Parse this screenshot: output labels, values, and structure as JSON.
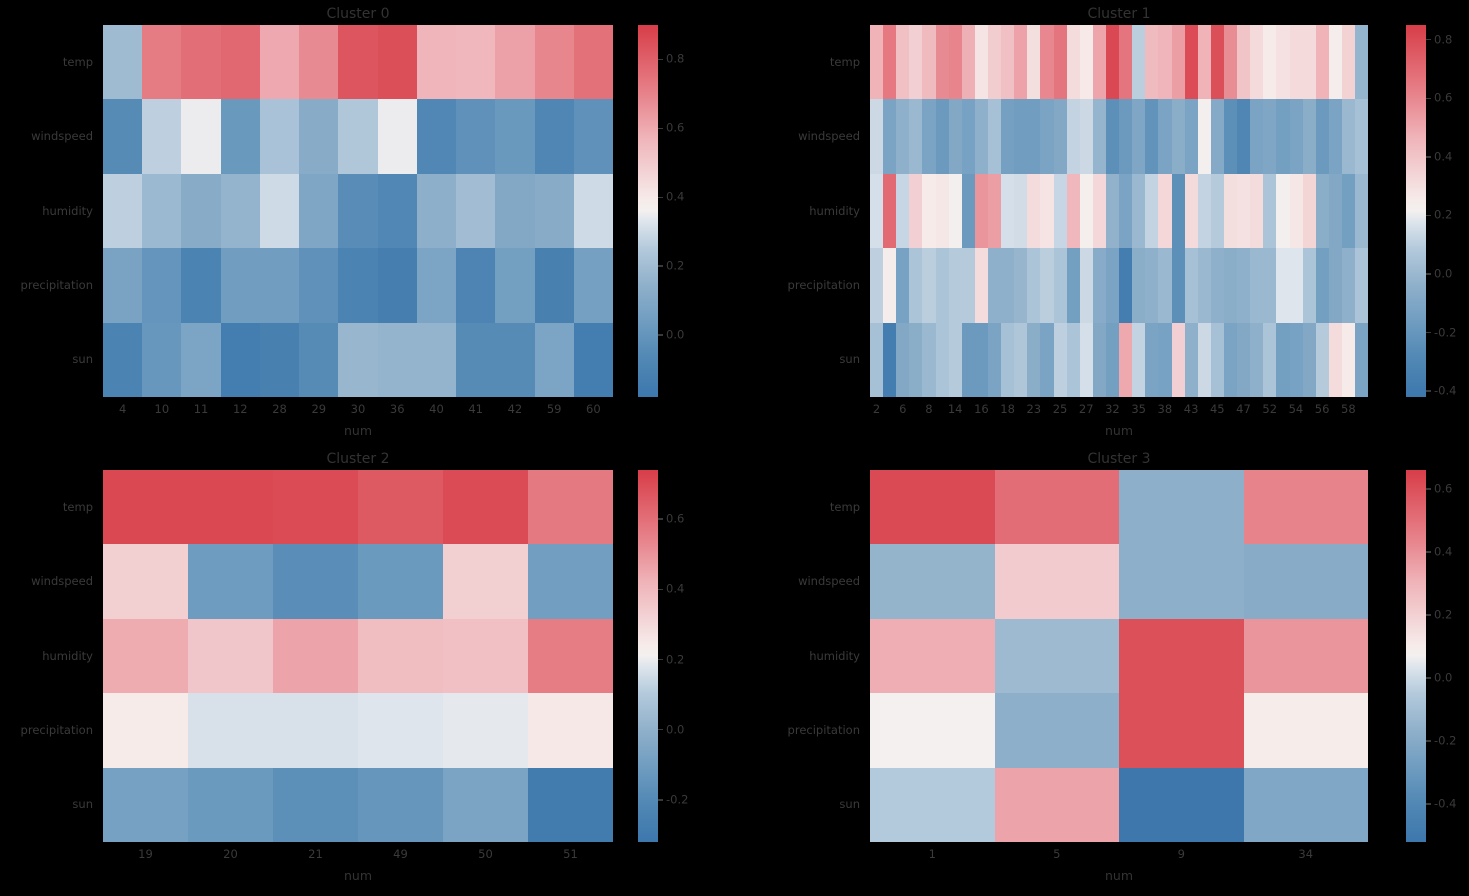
{
  "figure": {
    "background": "#000000",
    "text_color": "#333333",
    "palette": {
      "min_color": "#3d77ac",
      "mid_color": "#f3f0ef",
      "max_color": "#d73d48",
      "name": "red-blue-diverging"
    }
  },
  "chart_data": [
    {
      "type": "heatmap",
      "title": "Cluster 0",
      "xlabel": "num",
      "legend_position": "right-colorbar",
      "grid": false,
      "row_labels": [
        "temp",
        "windspeed",
        "humidity",
        "precipitation",
        "sun"
      ],
      "col_tick_labels": [
        "4",
        "10",
        "11",
        "12",
        "28",
        "29",
        "30",
        "36",
        "40",
        "41",
        "42",
        "59",
        "60"
      ],
      "tick_every": 1,
      "n_cols": 13,
      "vmin": -0.18,
      "vmax": 0.9,
      "colorbar_ticks": [
        0.8,
        0.6,
        0.4,
        0.2,
        0.0
      ],
      "values": [
        [
          0.19,
          0.72,
          0.76,
          0.78,
          0.6,
          0.68,
          0.83,
          0.85,
          0.57,
          0.56,
          0.62,
          0.69,
          0.75
        ],
        [
          -0.05,
          0.27,
          0.35,
          0.02,
          0.22,
          0.12,
          0.24,
          0.35,
          -0.07,
          -0.02,
          0.02,
          -0.08,
          -0.02
        ],
        [
          0.27,
          0.18,
          0.12,
          0.16,
          0.3,
          0.09,
          -0.04,
          -0.07,
          0.14,
          0.2,
          0.1,
          0.12,
          0.3
        ],
        [
          0.07,
          0.0,
          -0.1,
          0.04,
          0.04,
          -0.02,
          -0.1,
          -0.13,
          0.08,
          -0.09,
          0.05,
          -0.12,
          0.06
        ],
        [
          -0.1,
          0.01,
          0.08,
          -0.14,
          -0.12,
          -0.05,
          0.17,
          0.16,
          0.16,
          -0.05,
          -0.05,
          0.08,
          -0.14
        ]
      ]
    },
    {
      "type": "heatmap",
      "title": "Cluster 1",
      "xlabel": "num",
      "legend_position": "right-colorbar",
      "grid": false,
      "row_labels": [
        "temp",
        "windspeed",
        "humidity",
        "precipitation",
        "sun"
      ],
      "col_tick_labels": [
        "2",
        "6",
        "8",
        "14",
        "16",
        "18",
        "23",
        "25",
        "27",
        "32",
        "35",
        "38",
        "43",
        "45",
        "47",
        "52",
        "54",
        "56",
        "58"
      ],
      "tick_every": 2,
      "n_cols": 38,
      "vmin": -0.42,
      "vmax": 0.85,
      "colorbar_ticks": [
        0.8,
        0.6,
        0.4,
        0.2,
        0.0,
        -0.2,
        -0.4
      ],
      "values": [
        [
          0.47,
          0.65,
          0.42,
          0.36,
          0.44,
          0.59,
          0.61,
          0.48,
          0.28,
          0.37,
          0.42,
          0.52,
          0.3,
          0.6,
          0.66,
          0.31,
          0.26,
          0.51,
          0.81,
          0.66,
          0.1,
          0.44,
          0.46,
          0.53,
          0.8,
          0.47,
          0.79,
          0.58,
          0.4,
          0.32,
          0.25,
          0.29,
          0.32,
          0.32,
          0.47,
          0.24,
          0.35,
          -0.02
        ],
        [
          0.14,
          -0.12,
          -0.04,
          0.0,
          -0.12,
          -0.18,
          -0.09,
          -0.13,
          -0.04,
          0.04,
          -0.14,
          -0.16,
          -0.16,
          -0.12,
          -0.09,
          0.12,
          0.14,
          -0.02,
          -0.24,
          -0.18,
          -0.1,
          -0.22,
          -0.12,
          -0.06,
          -0.12,
          0.22,
          -0.08,
          -0.24,
          -0.3,
          -0.12,
          -0.1,
          -0.15,
          -0.12,
          -0.06,
          -0.18,
          -0.12,
          0.0,
          0.04
        ],
        [
          0.16,
          0.7,
          0.13,
          0.36,
          0.25,
          0.27,
          0.22,
          -0.18,
          0.56,
          0.53,
          0.16,
          0.15,
          0.31,
          0.28,
          0.13,
          0.45,
          0.23,
          0.33,
          -0.03,
          -0.12,
          0.0,
          0.12,
          0.33,
          -0.24,
          0.32,
          0.12,
          0.09,
          0.3,
          0.29,
          0.31,
          0.06,
          0.22,
          0.27,
          0.34,
          -0.06,
          -0.09,
          -0.15,
          0.0
        ],
        [
          0.11,
          0.24,
          -0.13,
          0.06,
          0.1,
          0.06,
          0.09,
          0.09,
          0.31,
          -0.04,
          -0.04,
          -0.01,
          0.06,
          0.1,
          0.06,
          -0.15,
          0.14,
          -0.07,
          -0.12,
          -0.37,
          -0.06,
          -0.04,
          0.0,
          -0.24,
          0.04,
          0.0,
          -0.04,
          -0.06,
          -0.04,
          0.0,
          0.0,
          0.18,
          0.18,
          0.06,
          -0.15,
          -0.09,
          -0.04,
          0.06
        ],
        [
          0.04,
          -0.37,
          -0.09,
          -0.06,
          0.0,
          0.06,
          0.09,
          -0.18,
          -0.18,
          -0.12,
          0.04,
          0.07,
          -0.06,
          -0.12,
          0.11,
          0.06,
          0.16,
          -0.09,
          -0.15,
          0.5,
          0.12,
          -0.12,
          -0.13,
          0.36,
          -0.04,
          0.14,
          0.04,
          -0.12,
          -0.09,
          -0.04,
          0.06,
          -0.15,
          -0.13,
          -0.09,
          0.09,
          0.31,
          0.25,
          -0.12
        ]
      ]
    },
    {
      "type": "heatmap",
      "title": "Cluster 2",
      "xlabel": "num",
      "legend_position": "right-colorbar",
      "grid": false,
      "row_labels": [
        "temp",
        "windspeed",
        "humidity",
        "precipitation",
        "sun"
      ],
      "col_tick_labels": [
        "19",
        "20",
        "21",
        "49",
        "50",
        "51"
      ],
      "tick_every": 1,
      "n_cols": 6,
      "vmin": -0.32,
      "vmax": 0.74,
      "colorbar_ticks": [
        0.6,
        0.4,
        0.2,
        0.0,
        -0.2
      ],
      "values": [
        [
          0.71,
          0.71,
          0.7,
          0.66,
          0.7,
          0.57
        ],
        [
          0.33,
          -0.11,
          -0.18,
          -0.12,
          0.33,
          -0.1
        ],
        [
          0.44,
          0.36,
          0.46,
          0.39,
          0.38,
          0.56
        ],
        [
          0.24,
          0.17,
          0.17,
          0.18,
          0.19,
          0.25
        ],
        [
          -0.08,
          -0.12,
          -0.17,
          -0.14,
          -0.07,
          -0.29
        ]
      ]
    },
    {
      "type": "heatmap",
      "title": "Cluster 3",
      "xlabel": "num",
      "legend_position": "right-colorbar",
      "grid": false,
      "row_labels": [
        "temp",
        "windspeed",
        "humidity",
        "precipitation",
        "sun"
      ],
      "col_tick_labels": [
        "1",
        "5",
        "9",
        "34"
      ],
      "tick_every": 1,
      "n_cols": 4,
      "vmin": -0.52,
      "vmax": 0.66,
      "colorbar_ticks": [
        0.6,
        0.4,
        0.2,
        0.0,
        -0.2,
        -0.4
      ],
      "values": [
        [
          0.62,
          0.51,
          -0.17,
          0.44
        ],
        [
          -0.15,
          0.22,
          -0.17,
          -0.19
        ],
        [
          0.32,
          -0.12,
          0.6,
          0.39
        ],
        [
          0.07,
          -0.17,
          0.6,
          0.1
        ],
        [
          -0.05,
          0.35,
          -0.52,
          -0.22
        ]
      ]
    }
  ]
}
